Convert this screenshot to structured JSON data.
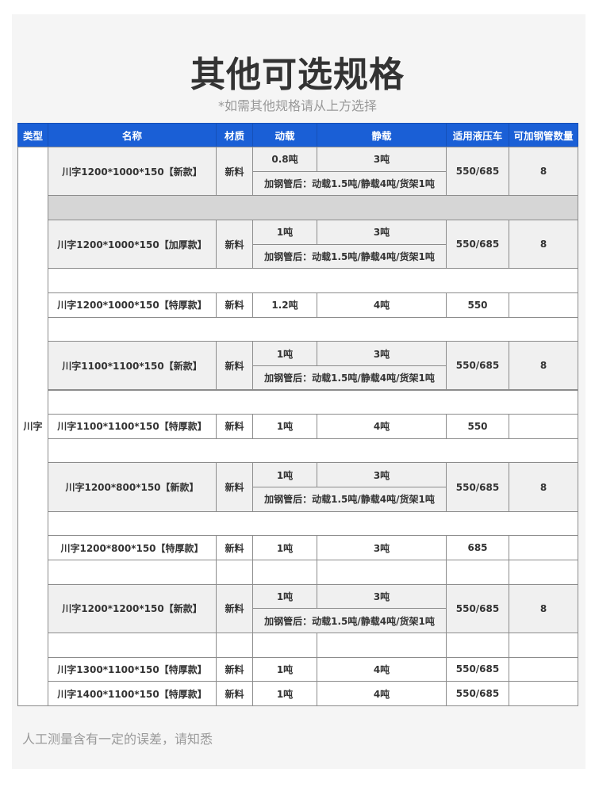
{
  "title": "其他可选规格",
  "subtitle": "*如需其他规格请从上方选择",
  "footer_note": "人工测量含有一定的误差，请知悉",
  "colors": {
    "header_bg": "#1a5fd6",
    "highlight_row_bg": "#f0f0f0",
    "separator_bg": "#d6d6d6"
  },
  "table": {
    "headers": [
      "类型",
      "名称",
      "材质",
      "动载",
      "静载",
      "适用液压车",
      "可加钢管数量"
    ],
    "type_label": "川字",
    "rows": [
      {
        "kind": "double",
        "name": "川字1200*1000*150【新款】",
        "material": "新料",
        "dynamic": "0.8吨",
        "static": "3吨",
        "note": "加钢管后：动载1.5吨/静载4吨/货架1吨",
        "truck": "550/685",
        "count": "8"
      },
      {
        "kind": "separator"
      },
      {
        "kind": "double",
        "name": "川字1200*1000*150【加厚款】",
        "material": "新料",
        "dynamic": "1吨",
        "static": "3吨",
        "note": "加钢管后：动载1.5吨/静载4吨/货架1吨",
        "truck": "550/685",
        "count": "8"
      },
      {
        "kind": "blank"
      },
      {
        "kind": "single",
        "name": "川字1200*1000*150【特厚款】",
        "material": "新料",
        "dynamic": "1.2吨",
        "static": "4吨",
        "truck": "550",
        "count": ""
      },
      {
        "kind": "blank"
      },
      {
        "kind": "double",
        "name": "川字1100*1100*150【新款】",
        "material": "新料",
        "dynamic": "1吨",
        "static": "3吨",
        "note": "加钢管后：动载1.5吨/静载4吨/货架1吨",
        "truck": "550/685",
        "count": "8"
      },
      {
        "kind": "blank"
      },
      {
        "kind": "single",
        "name": "川字1100*1100*150【特厚款】",
        "material": "新料",
        "dynamic": "1吨",
        "static": "4吨",
        "truck": "550",
        "count": ""
      },
      {
        "kind": "blank"
      },
      {
        "kind": "double",
        "name": "川字1200*800*150【新款】",
        "material": "新料",
        "dynamic": "1吨",
        "static": "3吨",
        "note": "加钢管后：动载1.5吨/静载4吨/货架1吨",
        "truck": "550/685",
        "count": "8"
      },
      {
        "kind": "blank"
      },
      {
        "kind": "single",
        "name": "川字1200*800*150【特厚款】",
        "material": "新料",
        "dynamic": "1吨",
        "static": "3吨",
        "truck": "685",
        "count": ""
      },
      {
        "kind": "blank_cells"
      },
      {
        "kind": "double",
        "name": "川字1200*1200*150【新款】",
        "material": "新料",
        "dynamic": "1吨",
        "static": "3吨",
        "note": "加钢管后：动载1.5吨/静载4吨/货架1吨",
        "truck": "550/685",
        "count": "8"
      },
      {
        "kind": "blank_cells"
      },
      {
        "kind": "single",
        "name": "川字1300*1100*150【特厚款】",
        "material": "新料",
        "dynamic": "1吨",
        "static": "4吨",
        "truck": "550/685",
        "count": ""
      },
      {
        "kind": "single",
        "name": "川字1400*1100*150【特厚款】",
        "material": "新料",
        "dynamic": "1吨",
        "static": "4吨",
        "truck": "550/685",
        "count": ""
      }
    ]
  }
}
